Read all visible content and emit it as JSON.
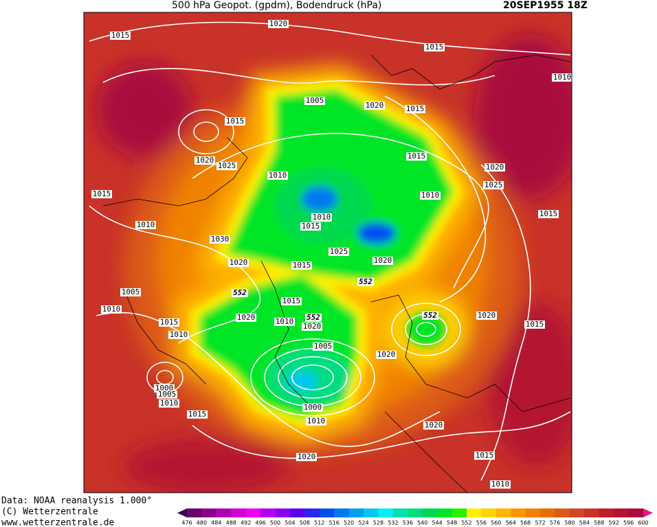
{
  "header": {
    "title": "500 hPa Geopot. (gpdm), Bodendruck (hPa)",
    "date": "20SEP1955 18Z"
  },
  "footer": {
    "source": "Data: NOAA reanalysis 1.000°",
    "copyright": "(C) Wetterzentrale",
    "url": "www.wetterzentrale.de"
  },
  "map": {
    "isobar_labels": [
      "1015",
      "1020",
      "1015",
      "1010",
      "1005",
      "1020",
      "1015",
      "1015",
      "1020",
      "1025",
      "1010",
      "1015",
      "1020",
      "1025",
      "1010",
      "1015",
      "1015",
      "1010",
      "1010",
      "1015",
      "1030",
      "1025",
      "1020",
      "1020",
      "1015",
      "1005",
      "1010",
      "1015",
      "1020",
      "1010",
      "1020",
      "1015",
      "1010",
      "1020",
      "1015",
      "1005",
      "1020",
      "1000",
      "1005",
      "1010",
      "1015",
      "1000",
      "1010",
      "1020",
      "1015",
      "1020",
      "1010"
    ],
    "height_labels": [
      "552",
      "552",
      "552",
      "552"
    ]
  },
  "colorbar": {
    "labels": [
      476,
      480,
      484,
      488,
      492,
      496,
      500,
      504,
      508,
      512,
      516,
      520,
      524,
      528,
      532,
      536,
      540,
      544,
      548,
      552,
      556,
      560,
      564,
      568,
      572,
      576,
      580,
      584,
      588,
      592,
      596,
      600
    ],
    "colors": [
      "#3c0050",
      "#6a006a",
      "#8c008c",
      "#b000b0",
      "#d400d4",
      "#f000f0",
      "#b400f0",
      "#8c00f0",
      "#5a00f0",
      "#2828f0",
      "#0050f0",
      "#0078f0",
      "#00a0f0",
      "#00c8f0",
      "#00f0f0",
      "#00e0b0",
      "#00dc80",
      "#00d850",
      "#00e628",
      "#28f000",
      "#fff000",
      "#ffd200",
      "#ffb400",
      "#ff9600",
      "#f08200",
      "#e66e00",
      "#dc5a14",
      "#d24628",
      "#c83228",
      "#be1e28",
      "#b41432",
      "#aa0a3c",
      "#e6148c"
    ]
  }
}
